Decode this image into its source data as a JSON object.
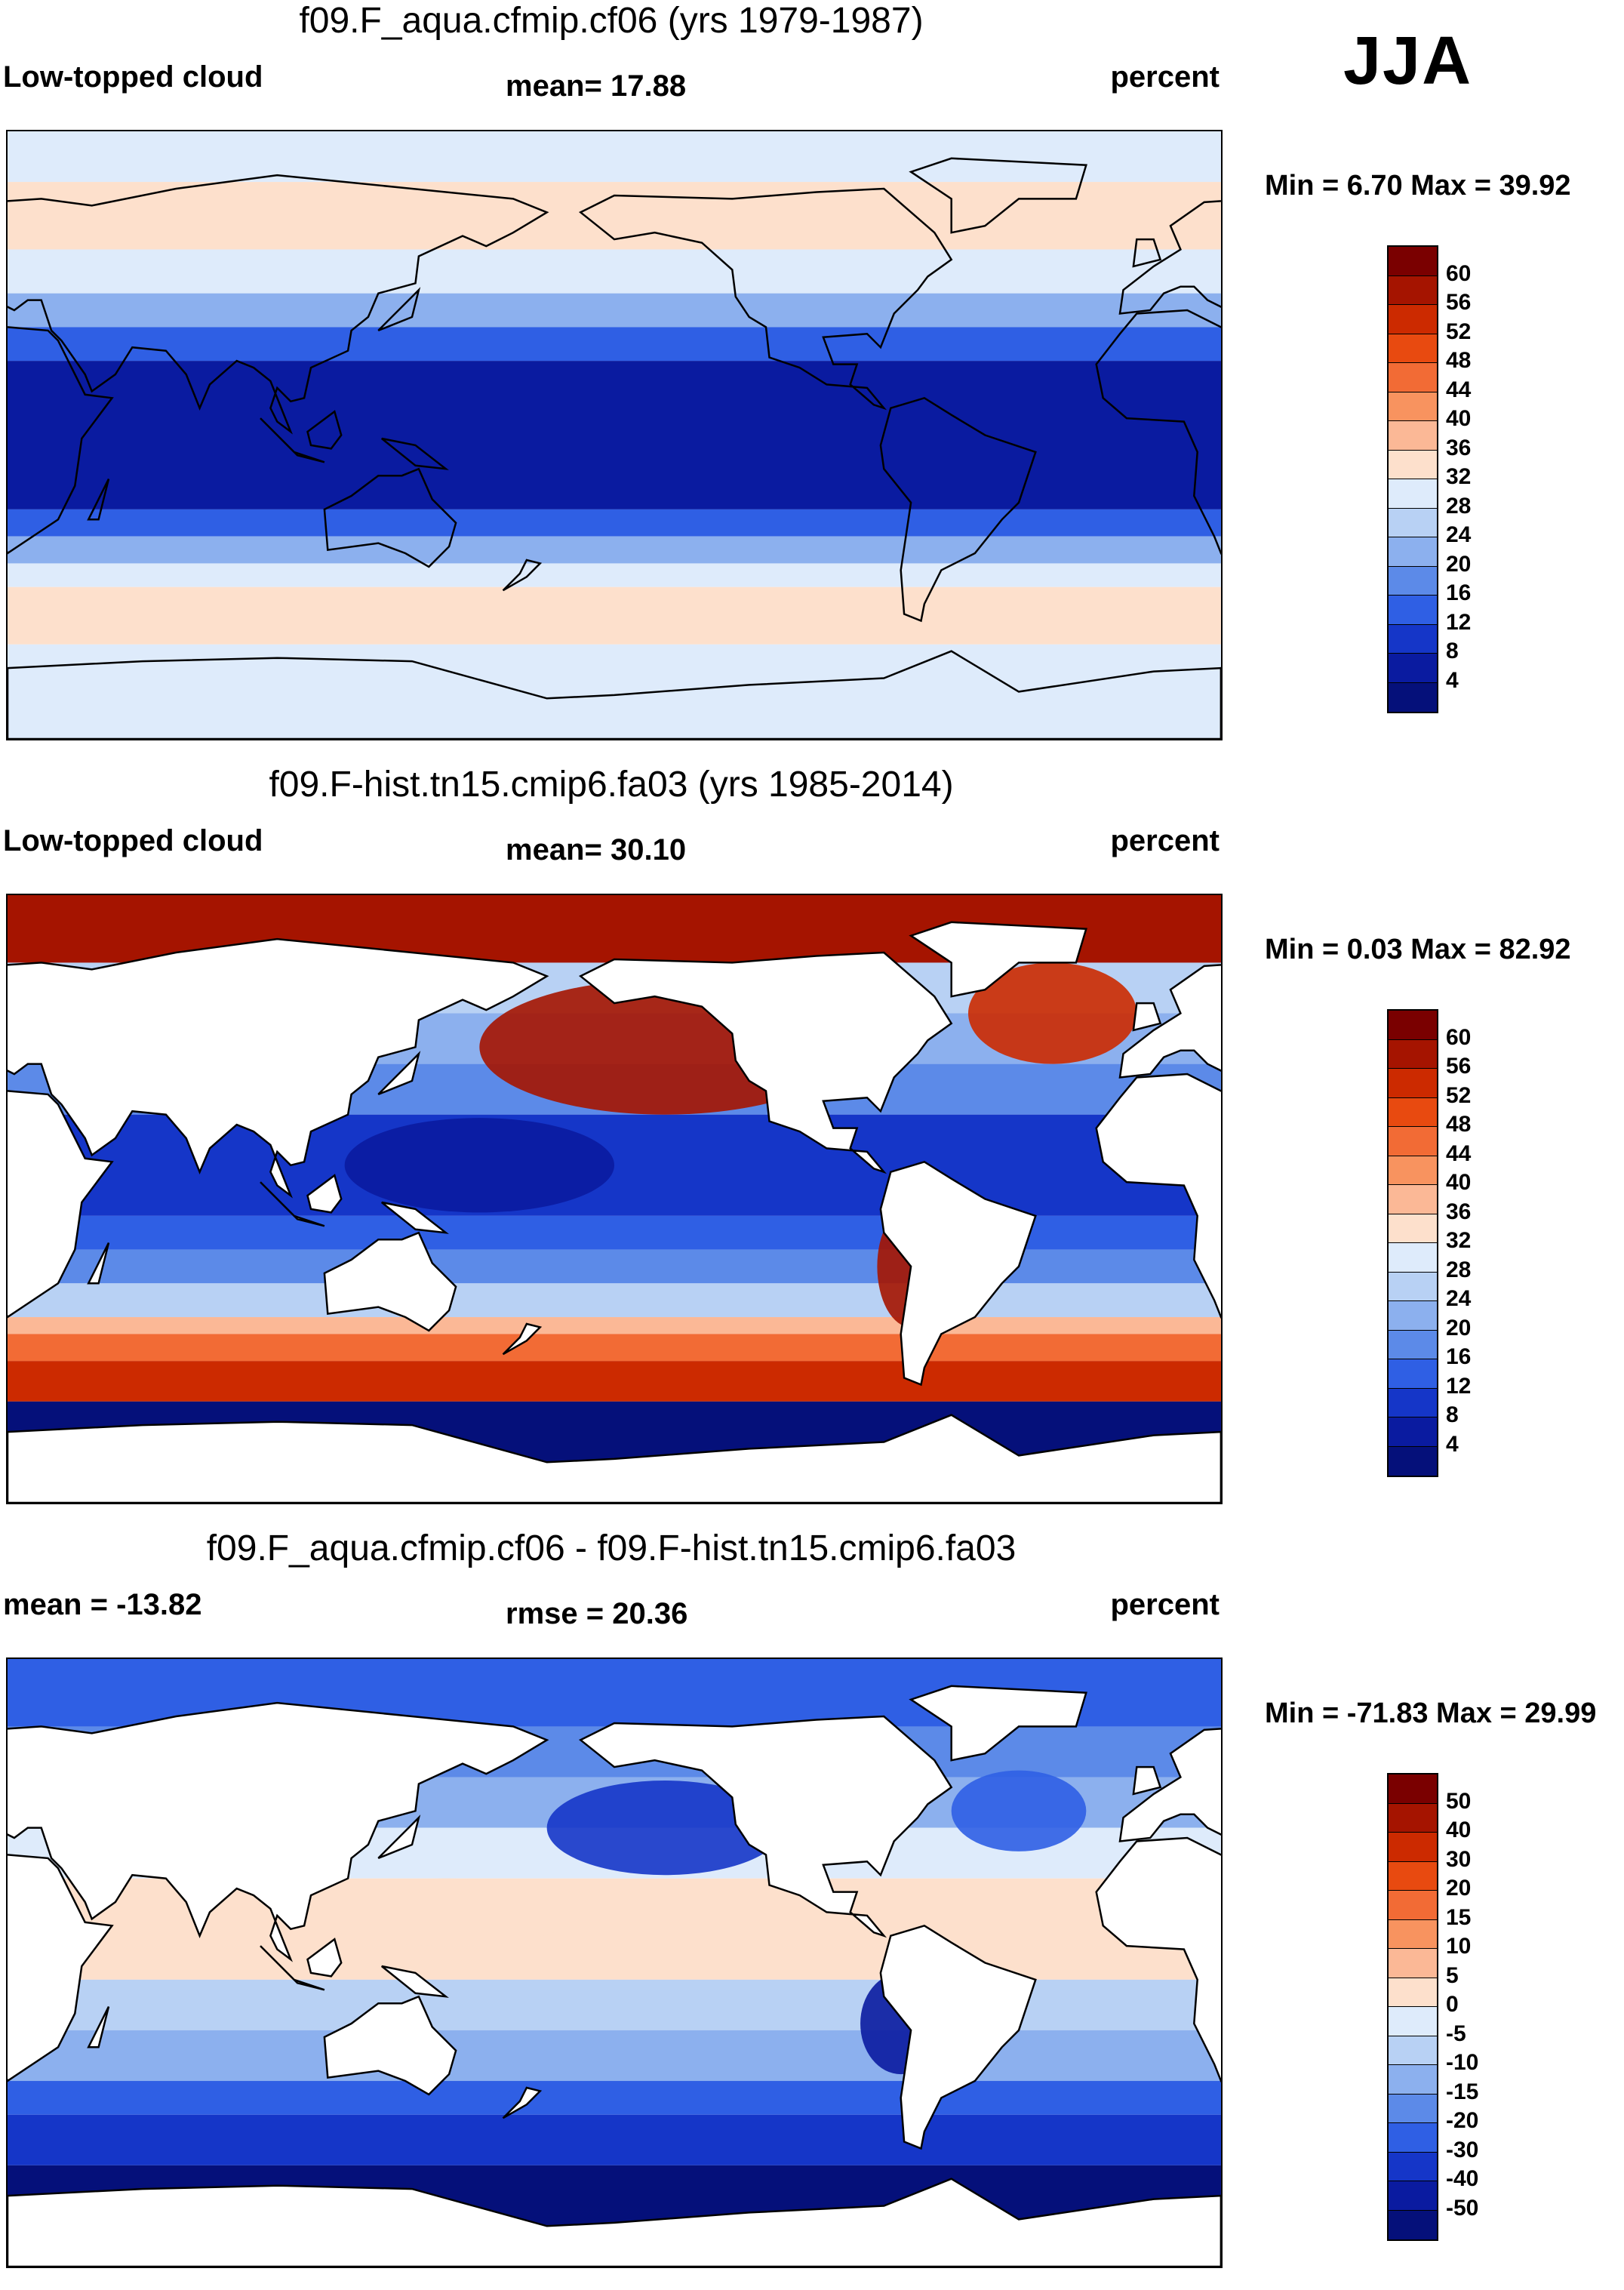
{
  "season": "JJA",
  "panels": [
    {
      "title": "f09.F_aqua.cfmip.cf06 (yrs 1979-1987)",
      "left_label": "Low-topped cloud",
      "mid_label": "mean=  17.88",
      "right_label": "percent",
      "minmax": "Min =   6.70 Max =  39.92",
      "colorbar_labels": [
        "60",
        "56",
        "52",
        "48",
        "44",
        "40",
        "36",
        "32",
        "28",
        "24",
        "20",
        "16",
        "12",
        "8",
        "4"
      ]
    },
    {
      "title": "f09.F-hist.tn15.cmip6.fa03 (yrs 1985-2014)",
      "left_label": "Low-topped cloud",
      "mid_label": "mean=  30.10",
      "right_label": "percent",
      "minmax": "Min =   0.03 Max =  82.92",
      "colorbar_labels": [
        "60",
        "56",
        "52",
        "48",
        "44",
        "40",
        "36",
        "32",
        "28",
        "24",
        "20",
        "16",
        "12",
        "8",
        "4"
      ]
    },
    {
      "title": "f09.F_aqua.cfmip.cf06 - f09.F-hist.tn15.cmip6.fa03",
      "left_label": "mean = -13.82",
      "mid_label": "rmse =  20.36",
      "right_label": "percent",
      "minmax": "Min = -71.83 Max =  29.99",
      "colorbar_labels": [
        "50",
        "40",
        "30",
        "20",
        "15",
        "10",
        "5",
        "0",
        "-5",
        "-10",
        "-15",
        "-20",
        "-30",
        "-40",
        "-50"
      ]
    }
  ],
  "colors": {
    "palette": [
      "#7a0000",
      "#a51400",
      "#cc2a00",
      "#e84a10",
      "#f26b35",
      "#f8935f",
      "#fbb896",
      "#fde0cc",
      "#deebfb",
      "#b8d1f4",
      "#8cb0ee",
      "#5c8ae8",
      "#2f5fe4",
      "#1536c8",
      "#0a1ba0",
      "#05107a"
    ],
    "land": "#ffffff",
    "coast": "#000000"
  }
}
